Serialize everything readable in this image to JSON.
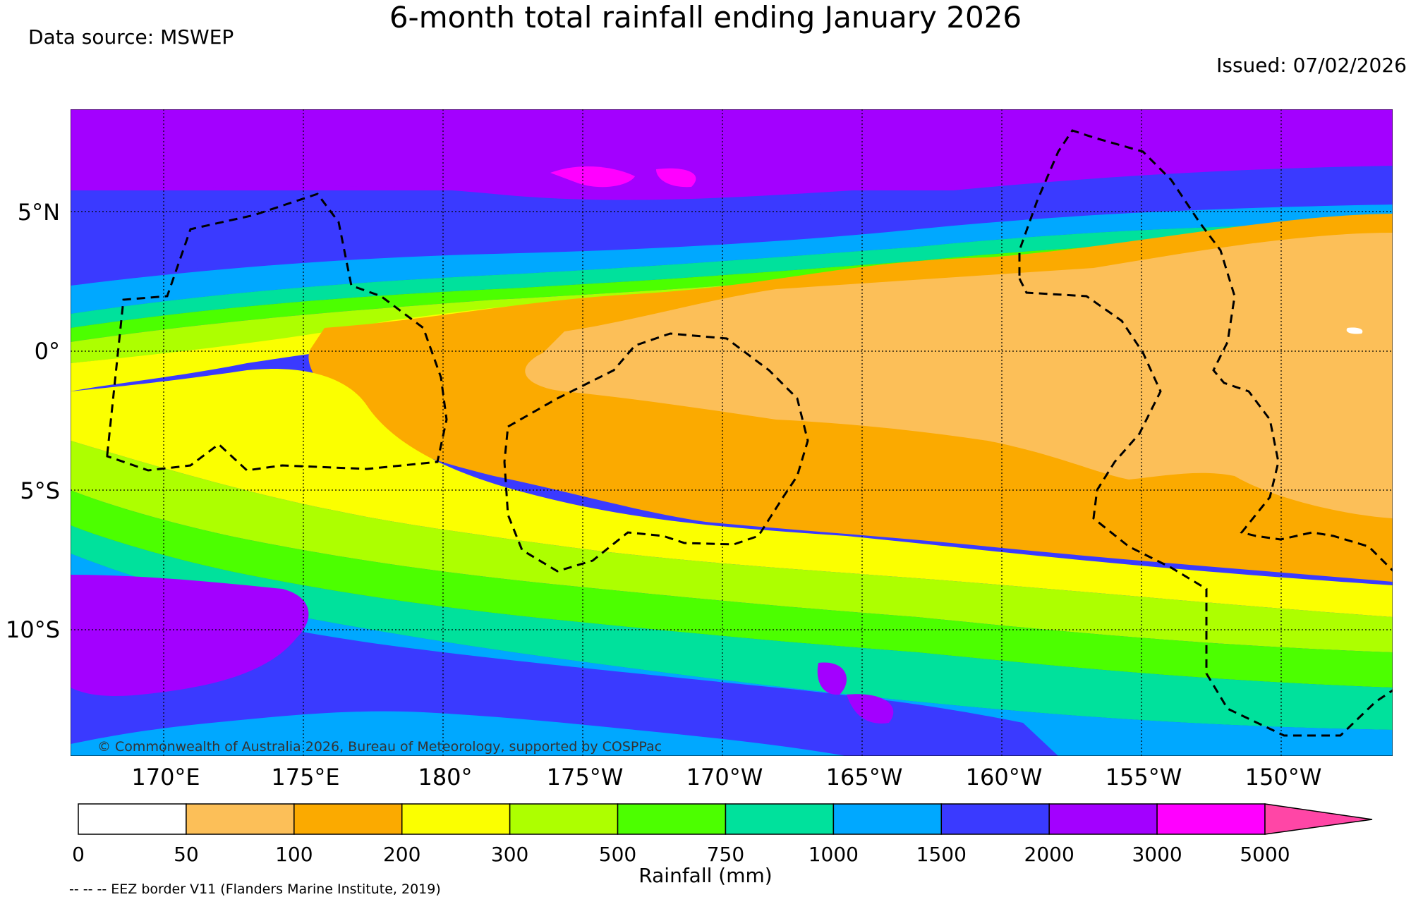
{
  "header": {
    "title": "6-month total rainfall ending January 2026",
    "data_source": "Data source: MSWEP",
    "issued": "Issued: 07/02/2026"
  },
  "map": {
    "lat_labels": [
      "5°N",
      "0°",
      "5°S",
      "10°S"
    ],
    "lon_labels": [
      "170°E",
      "175°E",
      "180°",
      "175°W",
      "170°W",
      "165°W",
      "160°W",
      "155°W",
      "150°W"
    ],
    "copyright": "© Commonwealth of Australia 2026, Bureau of Meteorology, supported by COSPPac",
    "lon_range": [
      166.7,
      214.2
    ],
    "lat_range": [
      -14.2,
      8.8
    ]
  },
  "legend": {
    "title": "Rainfall (mm)",
    "tick_labels": [
      "0",
      "50",
      "100",
      "200",
      "300",
      "500",
      "750",
      "1000",
      "1500",
      "2000",
      "3000",
      "5000"
    ],
    "colors": [
      "#ffffff",
      "#fcbf58",
      "#fbaa00",
      "#fbff00",
      "#adff00",
      "#4cff00",
      "#00e19c",
      "#00a8ff",
      "#3a3aff",
      "#a300ff",
      "#ff00ff",
      "#ff46a6"
    ],
    "eez_note": "-- -- -- EEZ border V11 (Flanders Marine Institute, 2019)"
  }
}
